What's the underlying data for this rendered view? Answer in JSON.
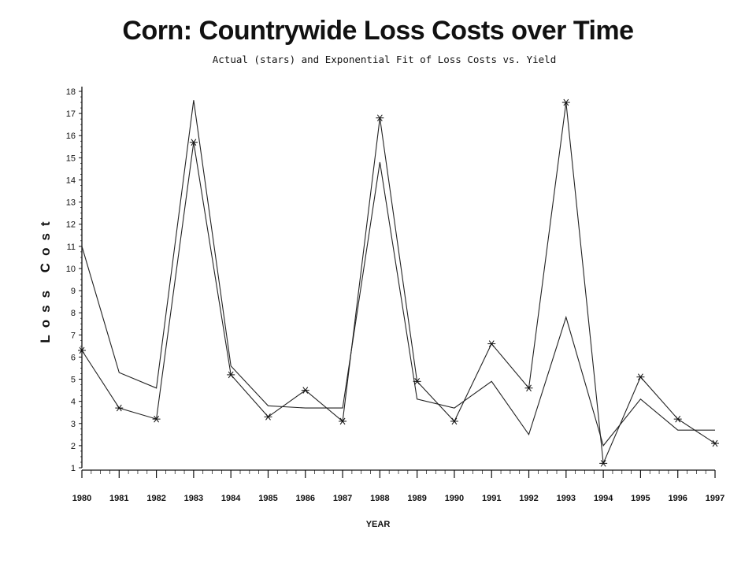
{
  "chart_data": {
    "type": "line",
    "title": "Corn: Countrywide Loss Costs over Time",
    "subtitle": "Actual (stars) and Exponential Fit of Loss Costs vs. Yield",
    "xlabel": "YEAR",
    "ylabel": "Loss Cost",
    "x": [
      1980,
      1981,
      1982,
      1983,
      1984,
      1985,
      1986,
      1987,
      1988,
      1989,
      1990,
      1991,
      1992,
      1993,
      1994,
      1995,
      1996,
      1997
    ],
    "xlim": [
      1980,
      1997
    ],
    "ylim": [
      1,
      18
    ],
    "yticks": [
      1,
      2,
      3,
      4,
      5,
      6,
      7,
      8,
      9,
      10,
      11,
      12,
      13,
      14,
      15,
      16,
      17,
      18
    ],
    "grid": false,
    "series": [
      {
        "marker": "star",
        "values": [
          6.3,
          3.7,
          3.2,
          15.7,
          5.2,
          3.3,
          4.5,
          3.1,
          16.8,
          4.9,
          3.1,
          6.6,
          4.6,
          17.5,
          1.2,
          5.1,
          3.2,
          2.1
        ]
      },
      {
        "marker": "none",
        "values": [
          11.0,
          5.3,
          4.6,
          17.6,
          5.6,
          3.8,
          3.7,
          3.7,
          14.8,
          4.1,
          3.7,
          4.9,
          2.5,
          7.8,
          2.0,
          4.1,
          2.7,
          2.7
        ]
      }
    ]
  }
}
